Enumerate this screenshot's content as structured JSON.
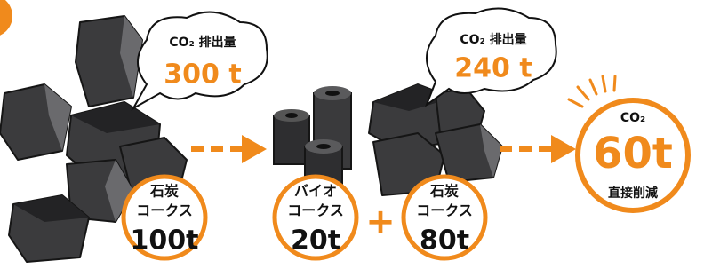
{
  "bubbles": [
    {
      "label": "CO₂ 排出量",
      "amount": "300 t"
    },
    {
      "label": "CO₂ 排出量",
      "amount": "240 t"
    }
  ],
  "result": {
    "label": "CO₂",
    "amount": "60t",
    "caption": "直接削減"
  },
  "inputs": [
    {
      "lines": [
        "石炭",
        "コークス"
      ],
      "amount": "100t"
    },
    {
      "lines": [
        "バイオ",
        "コークス"
      ],
      "amount": "20t"
    },
    {
      "lines": [
        "石炭",
        "コークス"
      ],
      "amount": "80t"
    }
  ],
  "plus": "+"
}
